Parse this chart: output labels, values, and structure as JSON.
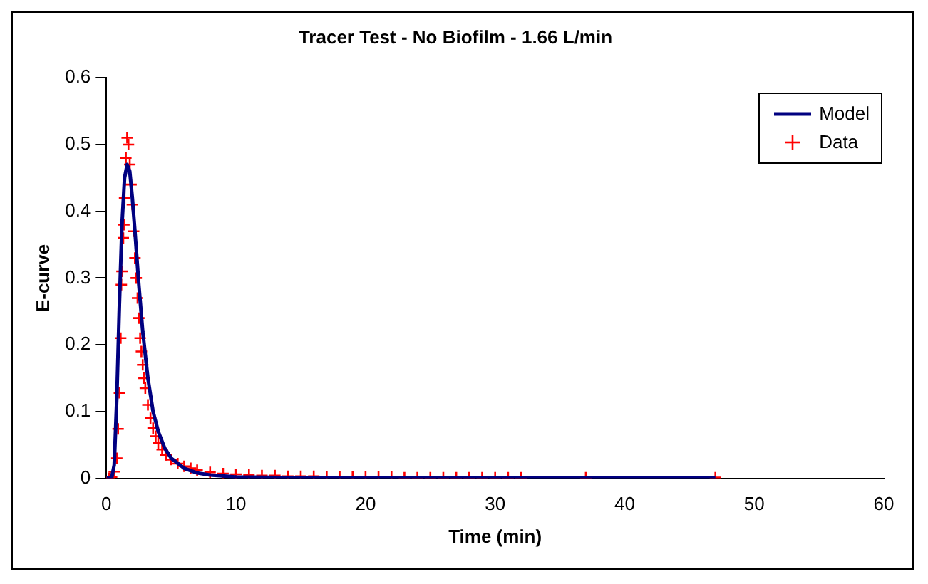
{
  "chart_data": {
    "type": "line",
    "title": "Tracer Test - No Biofilm - 1.66 L/min",
    "xlabel": "Time (min)",
    "ylabel": "E-curve",
    "xlim": [
      0,
      60
    ],
    "xticks": [
      0,
      10,
      20,
      30,
      40,
      50,
      60
    ],
    "ylim": [
      0,
      0.6
    ],
    "yticks": [
      0,
      0.1,
      0.2,
      0.3,
      0.4,
      0.5,
      0.6
    ],
    "grid": false,
    "legend": "top right",
    "series": [
      {
        "name": "Model",
        "color": "#000080",
        "marker": "none",
        "line_style": "solid",
        "x": [
          0,
          0.4,
          0.6,
          0.8,
          1.0,
          1.2,
          1.4,
          1.6,
          1.8,
          2.0,
          2.2,
          2.5,
          2.8,
          3.2,
          3.6,
          4.0,
          4.5,
          5.0,
          6,
          7,
          8,
          10,
          15,
          20,
          30,
          47
        ],
        "values": [
          0,
          0,
          0.02,
          0.12,
          0.26,
          0.38,
          0.45,
          0.47,
          0.46,
          0.42,
          0.37,
          0.29,
          0.22,
          0.15,
          0.1,
          0.07,
          0.045,
          0.03,
          0.015,
          0.008,
          0.005,
          0.002,
          0.001,
          0,
          0,
          0
        ]
      },
      {
        "name": "Data",
        "type": "scatter",
        "color": "#ff0000",
        "marker": "cross",
        "x": [
          0.2,
          0.4,
          0.6,
          0.8,
          0.9,
          1.0,
          1.1,
          1.15,
          1.2,
          1.3,
          1.35,
          1.4,
          1.5,
          1.6,
          1.7,
          1.8,
          1.9,
          2.0,
          2.1,
          2.2,
          2.3,
          2.4,
          2.5,
          2.6,
          2.7,
          2.8,
          2.9,
          3.0,
          3.2,
          3.4,
          3.6,
          3.8,
          4.0,
          4.3,
          4.6,
          5.0,
          5.5,
          6.0,
          6.5,
          7,
          8,
          9,
          10,
          11,
          12,
          13,
          14,
          15,
          16,
          17,
          18,
          19,
          20,
          21,
          22,
          23,
          24,
          25,
          26,
          27,
          28,
          29,
          30,
          31,
          32,
          37,
          47
        ],
        "values": [
          0,
          0.002,
          0.01,
          0.03,
          0.074,
          0.128,
          0.21,
          0.29,
          0.31,
          0.36,
          0.38,
          0.42,
          0.48,
          0.51,
          0.5,
          0.47,
          0.44,
          0.41,
          0.37,
          0.33,
          0.3,
          0.27,
          0.24,
          0.21,
          0.19,
          0.17,
          0.15,
          0.135,
          0.11,
          0.09,
          0.075,
          0.063,
          0.053,
          0.043,
          0.035,
          0.028,
          0.022,
          0.018,
          0.015,
          0.012,
          0.009,
          0.007,
          0.006,
          0.005,
          0.004,
          0.004,
          0.003,
          0.003,
          0.003,
          0.002,
          0.002,
          0.002,
          0.002,
          0.002,
          0.002,
          0.001,
          0.001,
          0.001,
          0.001,
          0.001,
          0.001,
          0.001,
          0.001,
          0.001,
          0.001,
          0.001,
          0.001
        ]
      }
    ]
  }
}
